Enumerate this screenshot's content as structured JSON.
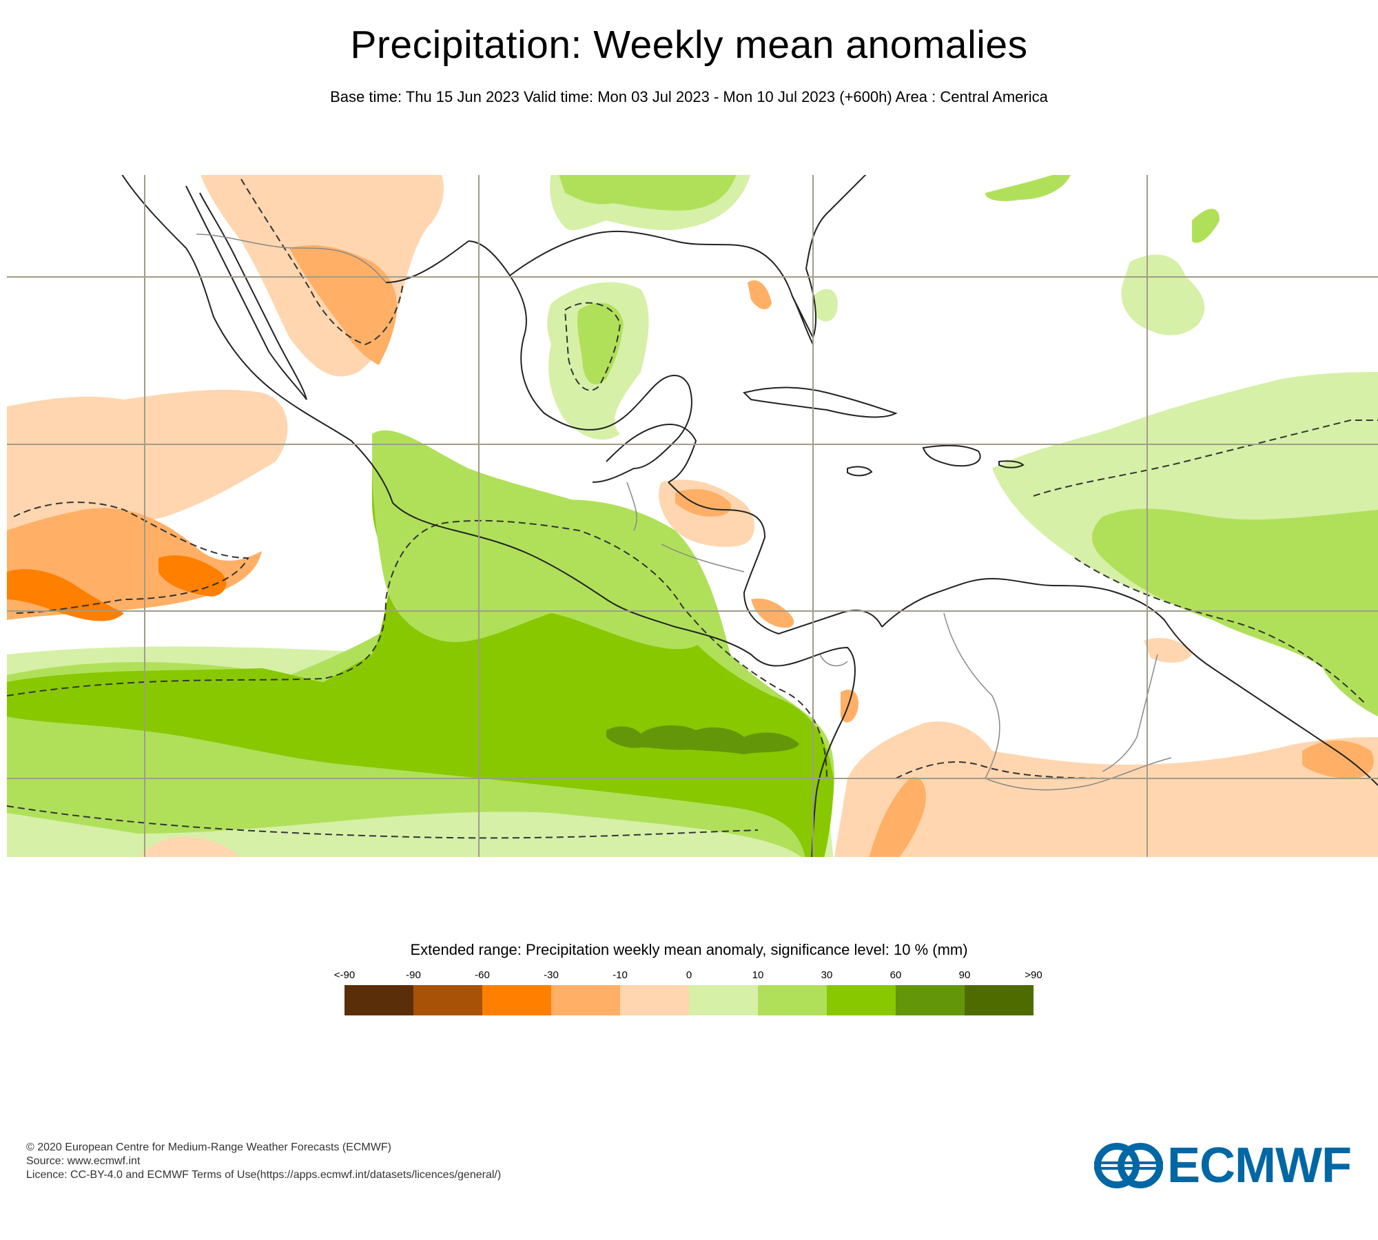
{
  "title": "Precipitation: Weekly mean anomalies",
  "subtitle": "Base time: Thu 15 Jun 2023 Valid time: Mon 03 Jul 2023 - Mon 10 Jul 2023 (+600h) Area : Central America",
  "legend": {
    "title": "Extended range: Precipitation weekly mean anomaly, significance level: 10 % (mm)",
    "tick_labels": [
      "<-90",
      "-90",
      "-60",
      "-30",
      "-10",
      "0",
      "10",
      "30",
      "60",
      "90",
      ">90"
    ],
    "colors": [
      "#5a2e08",
      "#a85208",
      "#ff7f00",
      "#ffb066",
      "#ffd6b0",
      "#d6f0a8",
      "#b0e05a",
      "#88c800",
      "#64960a",
      "#4e6b00"
    ]
  },
  "colors": {
    "coast": "#222222",
    "border": "#888888",
    "grid": "#a09c88",
    "brand": "#0067a5"
  },
  "footer": {
    "copyright": "© 2020 European Centre for Medium-Range Weather Forecasts (ECMWF)",
    "source": "Source: www.ecmwf.int",
    "licence": "Licence: CC-BY-4.0 and ECMWF Terms of Use(https://apps.ecmwf.int/datasets/licences/general/)"
  },
  "logo": {
    "text": "ECMWF"
  }
}
